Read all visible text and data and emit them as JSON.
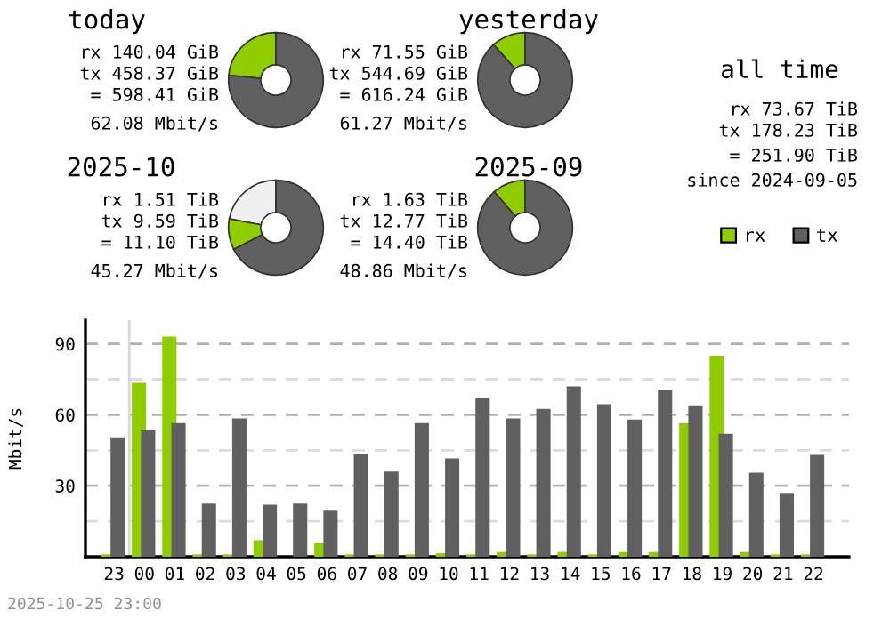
{
  "chart_data": [
    {
      "type": "donut",
      "title": "today",
      "categories": [
        "rx",
        "tx"
      ],
      "values": [
        23.4,
        76.6
      ],
      "colors": [
        "#8fcc00",
        "#606060"
      ],
      "legend": "right",
      "annotations": [
        "rx 140.04 GiB",
        "tx 458.37 GiB",
        "= 598.41 GiB",
        "62.08 Mbit/s"
      ]
    },
    {
      "type": "donut",
      "title": "yesterday",
      "categories": [
        null,
        null
      ],
      "values": [
        11.6,
        88.4
      ],
      "colors": [
        "#8fcc00",
        "#606060"
      ],
      "annotations": [
        "rx 71.55 GiB",
        "tx 544.69 GiB",
        "= 616.24 GiB",
        "61.27 Mbit/s"
      ]
    },
    {
      "type": "donut",
      "title": "2025-10",
      "categories": [
        null,
        null,
        null
      ],
      "values": [
        22,
        10.6,
        67.4
      ],
      "colors": [
        "#f0f0f0",
        "#8fcc00",
        "#606060"
      ],
      "annotations": [
        "rx 1.51 TiB",
        "tx 9.59 TiB",
        "= 11.10 TiB",
        "45.27 Mbit/s"
      ]
    },
    {
      "type": "donut",
      "title": "2025-09",
      "categories": [
        null,
        null
      ],
      "values": [
        11.3,
        88.7
      ],
      "colors": [
        "#8fcc00",
        "#606060"
      ],
      "annotations": [
        "rx 1.63 TiB",
        "tx 12.77 TiB",
        "= 14.40 TiB",
        "48.86 Mbit/s"
      ]
    },
    {
      "type": "other",
      "title": "all time",
      "annotations": [
        "rx 73.67 TiB",
        "tx 178.23 TiB",
        "= 251.90 TiB",
        "since 2024-09-05"
      ]
    },
    {
      "type": "bar",
      "categories": [
        "23",
        "00",
        "01",
        "02",
        "03",
        "04",
        "05",
        "06",
        "07",
        "08",
        "09",
        "10",
        "11",
        "12",
        "13",
        "14",
        "15",
        "16",
        "17",
        "18",
        "19",
        "20",
        "21",
        "22"
      ],
      "series": [
        {
          "color": "#8fcc00",
          "values": [
            1,
            73.5,
            93,
            1,
            1,
            7,
            0,
            6,
            1,
            1,
            1,
            1.5,
            1,
            2,
            1,
            2,
            1,
            2,
            2,
            56.5,
            85,
            2,
            1,
            1
          ]
        },
        {
          "color": "#606060",
          "values": [
            50.5,
            53.5,
            56.5,
            22.5,
            58.5,
            22,
            22.5,
            19.5,
            43.5,
            36,
            56.5,
            41.5,
            67,
            58.5,
            62.5,
            72,
            64.5,
            58,
            70.5,
            64,
            52,
            35.5,
            27,
            43
          ]
        }
      ],
      "ylabel": "Mbit/s",
      "ylim": [
        0,
        100
      ],
      "yticks": [
        {
          "value": 15,
          "label": null
        },
        30,
        {
          "value": 45,
          "label": null
        },
        60,
        {
          "value": 75,
          "label": null
        },
        90
      ],
      "grid": "y",
      "ref_lines": [
        {
          "axis": "x",
          "value": "00",
          "color": "#d8d8d8"
        }
      ],
      "annotations": [
        "2025-10-25 23:00"
      ]
    }
  ]
}
